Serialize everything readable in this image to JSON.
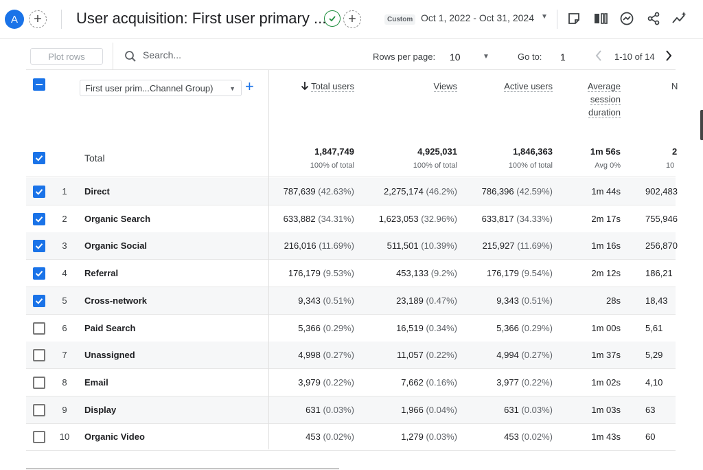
{
  "header": {
    "avatar_letter": "A",
    "title": "User acquisition: First user primary ...",
    "date_chip": "Custom",
    "date_range": "Oct 1, 2022 - Oct 31, 2024",
    "add_symbol": "+"
  },
  "toolbar": {
    "plot_rows_label": "Plot rows",
    "search_placeholder": "Search...",
    "rows_per_page_label": "Rows per page:",
    "rows_per_page_value": "10",
    "goto_label": "Go to:",
    "goto_value": "1",
    "page_info": "1-10 of 14"
  },
  "table": {
    "dimension_label": "First user prim...Channel Group)",
    "columns": {
      "total_users": "Total users",
      "views": "Views",
      "active_users": "Active users",
      "avg_session_1": "Average",
      "avg_session_2": "session",
      "avg_session_3": "duration",
      "cut_col": "N"
    },
    "totals": {
      "label": "Total",
      "total_users": "1,847,749",
      "total_users_sub": "100% of total",
      "views": "4,925,031",
      "views_sub": "100% of total",
      "active_users": "1,846,363",
      "active_users_sub": "100% of total",
      "avg_session": "1m 56s",
      "avg_session_sub": "Avg 0%",
      "cut_col": "2",
      "cut_col_sub": "10"
    },
    "rows": [
      {
        "index": "1",
        "name": "Direct",
        "checked": true,
        "total_users": "787,639",
        "total_users_pct": "(42.63%)",
        "views": "2,275,174",
        "views_pct": "(46.2%)",
        "active_users": "786,396",
        "active_users_pct": "(42.59%)",
        "avg_session": "1m 44s",
        "cut_col": "902,483"
      },
      {
        "index": "2",
        "name": "Organic Search",
        "checked": true,
        "total_users": "633,882",
        "total_users_pct": "(34.31%)",
        "views": "1,623,053",
        "views_pct": "(32.96%)",
        "active_users": "633,817",
        "active_users_pct": "(34.33%)",
        "avg_session": "2m 17s",
        "cut_col": "755,946"
      },
      {
        "index": "3",
        "name": "Organic Social",
        "checked": true,
        "total_users": "216,016",
        "total_users_pct": "(11.69%)",
        "views": "511,501",
        "views_pct": "(10.39%)",
        "active_users": "215,927",
        "active_users_pct": "(11.69%)",
        "avg_session": "1m 16s",
        "cut_col": "256,870"
      },
      {
        "index": "4",
        "name": "Referral",
        "checked": true,
        "total_users": "176,179",
        "total_users_pct": "(9.53%)",
        "views": "453,133",
        "views_pct": "(9.2%)",
        "active_users": "176,179",
        "active_users_pct": "(9.54%)",
        "avg_session": "2m 12s",
        "cut_col": "186,21"
      },
      {
        "index": "5",
        "name": "Cross-network",
        "checked": true,
        "total_users": "9,343",
        "total_users_pct": "(0.51%)",
        "views": "23,189",
        "views_pct": "(0.47%)",
        "active_users": "9,343",
        "active_users_pct": "(0.51%)",
        "avg_session": "28s",
        "cut_col": "18,43"
      },
      {
        "index": "6",
        "name": "Paid Search",
        "checked": false,
        "total_users": "5,366",
        "total_users_pct": "(0.29%)",
        "views": "16,519",
        "views_pct": "(0.34%)",
        "active_users": "5,366",
        "active_users_pct": "(0.29%)",
        "avg_session": "1m 00s",
        "cut_col": "5,61"
      },
      {
        "index": "7",
        "name": "Unassigned",
        "checked": false,
        "total_users": "4,998",
        "total_users_pct": "(0.27%)",
        "views": "11,057",
        "views_pct": "(0.22%)",
        "active_users": "4,994",
        "active_users_pct": "(0.27%)",
        "avg_session": "1m 37s",
        "cut_col": "5,29"
      },
      {
        "index": "8",
        "name": "Email",
        "checked": false,
        "total_users": "3,979",
        "total_users_pct": "(0.22%)",
        "views": "7,662",
        "views_pct": "(0.16%)",
        "active_users": "3,977",
        "active_users_pct": "(0.22%)",
        "avg_session": "1m 02s",
        "cut_col": "4,10"
      },
      {
        "index": "9",
        "name": "Display",
        "checked": false,
        "total_users": "631",
        "total_users_pct": "(0.03%)",
        "views": "1,966",
        "views_pct": "(0.04%)",
        "active_users": "631",
        "active_users_pct": "(0.03%)",
        "avg_session": "1m 03s",
        "cut_col": "63"
      },
      {
        "index": "10",
        "name": "Organic Video",
        "checked": false,
        "total_users": "453",
        "total_users_pct": "(0.02%)",
        "views": "1,279",
        "views_pct": "(0.03%)",
        "active_users": "453",
        "active_users_pct": "(0.02%)",
        "avg_session": "1m 43s",
        "cut_col": "60"
      }
    ]
  },
  "icons": [
    "add-comparison-icon",
    "verified-check-icon",
    "add-icon",
    "annotation-icon",
    "compare-columns-icon",
    "insights-icon",
    "share-icon",
    "sparkle-trend-icon",
    "search-icon",
    "sort-arrow-down-icon",
    "chevron-left-icon",
    "chevron-right-icon"
  ],
  "colors": {
    "accent": "#1a73e8",
    "verified": "#1e8e3e"
  }
}
